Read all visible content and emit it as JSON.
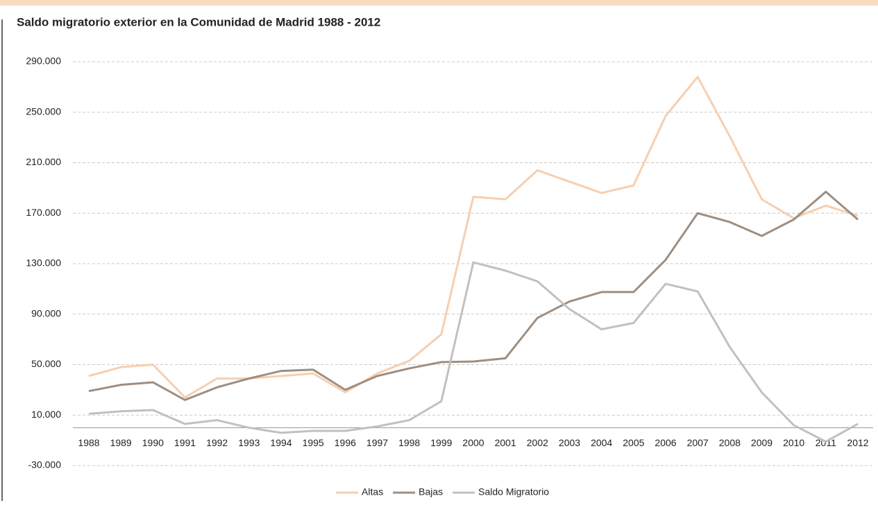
{
  "chart_data": {
    "type": "line",
    "title": "Saldo migratorio exterior en la Comunidad de Madrid 1988 - 2012",
    "categories": [
      "1988",
      "1989",
      "1990",
      "1991",
      "1992",
      "1993",
      "1994",
      "1995",
      "1996",
      "1997",
      "1998",
      "1999",
      "2000",
      "2001",
      "2002",
      "2003",
      "2004",
      "2005",
      "2006",
      "2007",
      "2008",
      "2009",
      "2010",
      "2011",
      "2012"
    ],
    "series": [
      {
        "name": "Altas",
        "color": "#f5cfb0",
        "values": [
          41000,
          48000,
          50000,
          24000,
          39000,
          39000,
          41000,
          43000,
          28000,
          43000,
          53000,
          74000,
          183000,
          181000,
          204000,
          195000,
          186000,
          192000,
          247000,
          278000,
          231000,
          181000,
          166000,
          176000,
          168000
        ]
      },
      {
        "name": "Bajas",
        "color": "#9e8e80",
        "values": [
          29000,
          34000,
          36000,
          22000,
          32000,
          39000,
          45000,
          46000,
          30000,
          41000,
          47000,
          52000,
          52500,
          55000,
          87000,
          100000,
          107500,
          107500,
          133000,
          170000,
          163000,
          152000,
          165000,
          187000,
          165000
        ]
      },
      {
        "name": "Saldo Migratorio",
        "color": "#c0c0c0",
        "values": [
          11000,
          13000,
          14000,
          3000,
          6000,
          0,
          -4000,
          -2500,
          -2500,
          1000,
          6000,
          21000,
          131000,
          124500,
          116000,
          94000,
          78000,
          83000,
          114000,
          108000,
          64000,
          28000,
          2000,
          -11000,
          3000
        ]
      }
    ],
    "ylim": [
      -30000,
      290000
    ],
    "yticks": [
      {
        "value": -30000,
        "label": "-30.000"
      },
      {
        "value": 10000,
        "label": "10.000"
      },
      {
        "value": 50000,
        "label": "50.000"
      },
      {
        "value": 90000,
        "label": "90.000"
      },
      {
        "value": 130000,
        "label": "130.000"
      },
      {
        "value": 170000,
        "label": "170.000"
      },
      {
        "value": 210000,
        "label": "210.000"
      },
      {
        "value": 250000,
        "label": "250.000"
      },
      {
        "value": 290000,
        "label": "290.000"
      }
    ],
    "grid": true,
    "legend": "bottom"
  }
}
